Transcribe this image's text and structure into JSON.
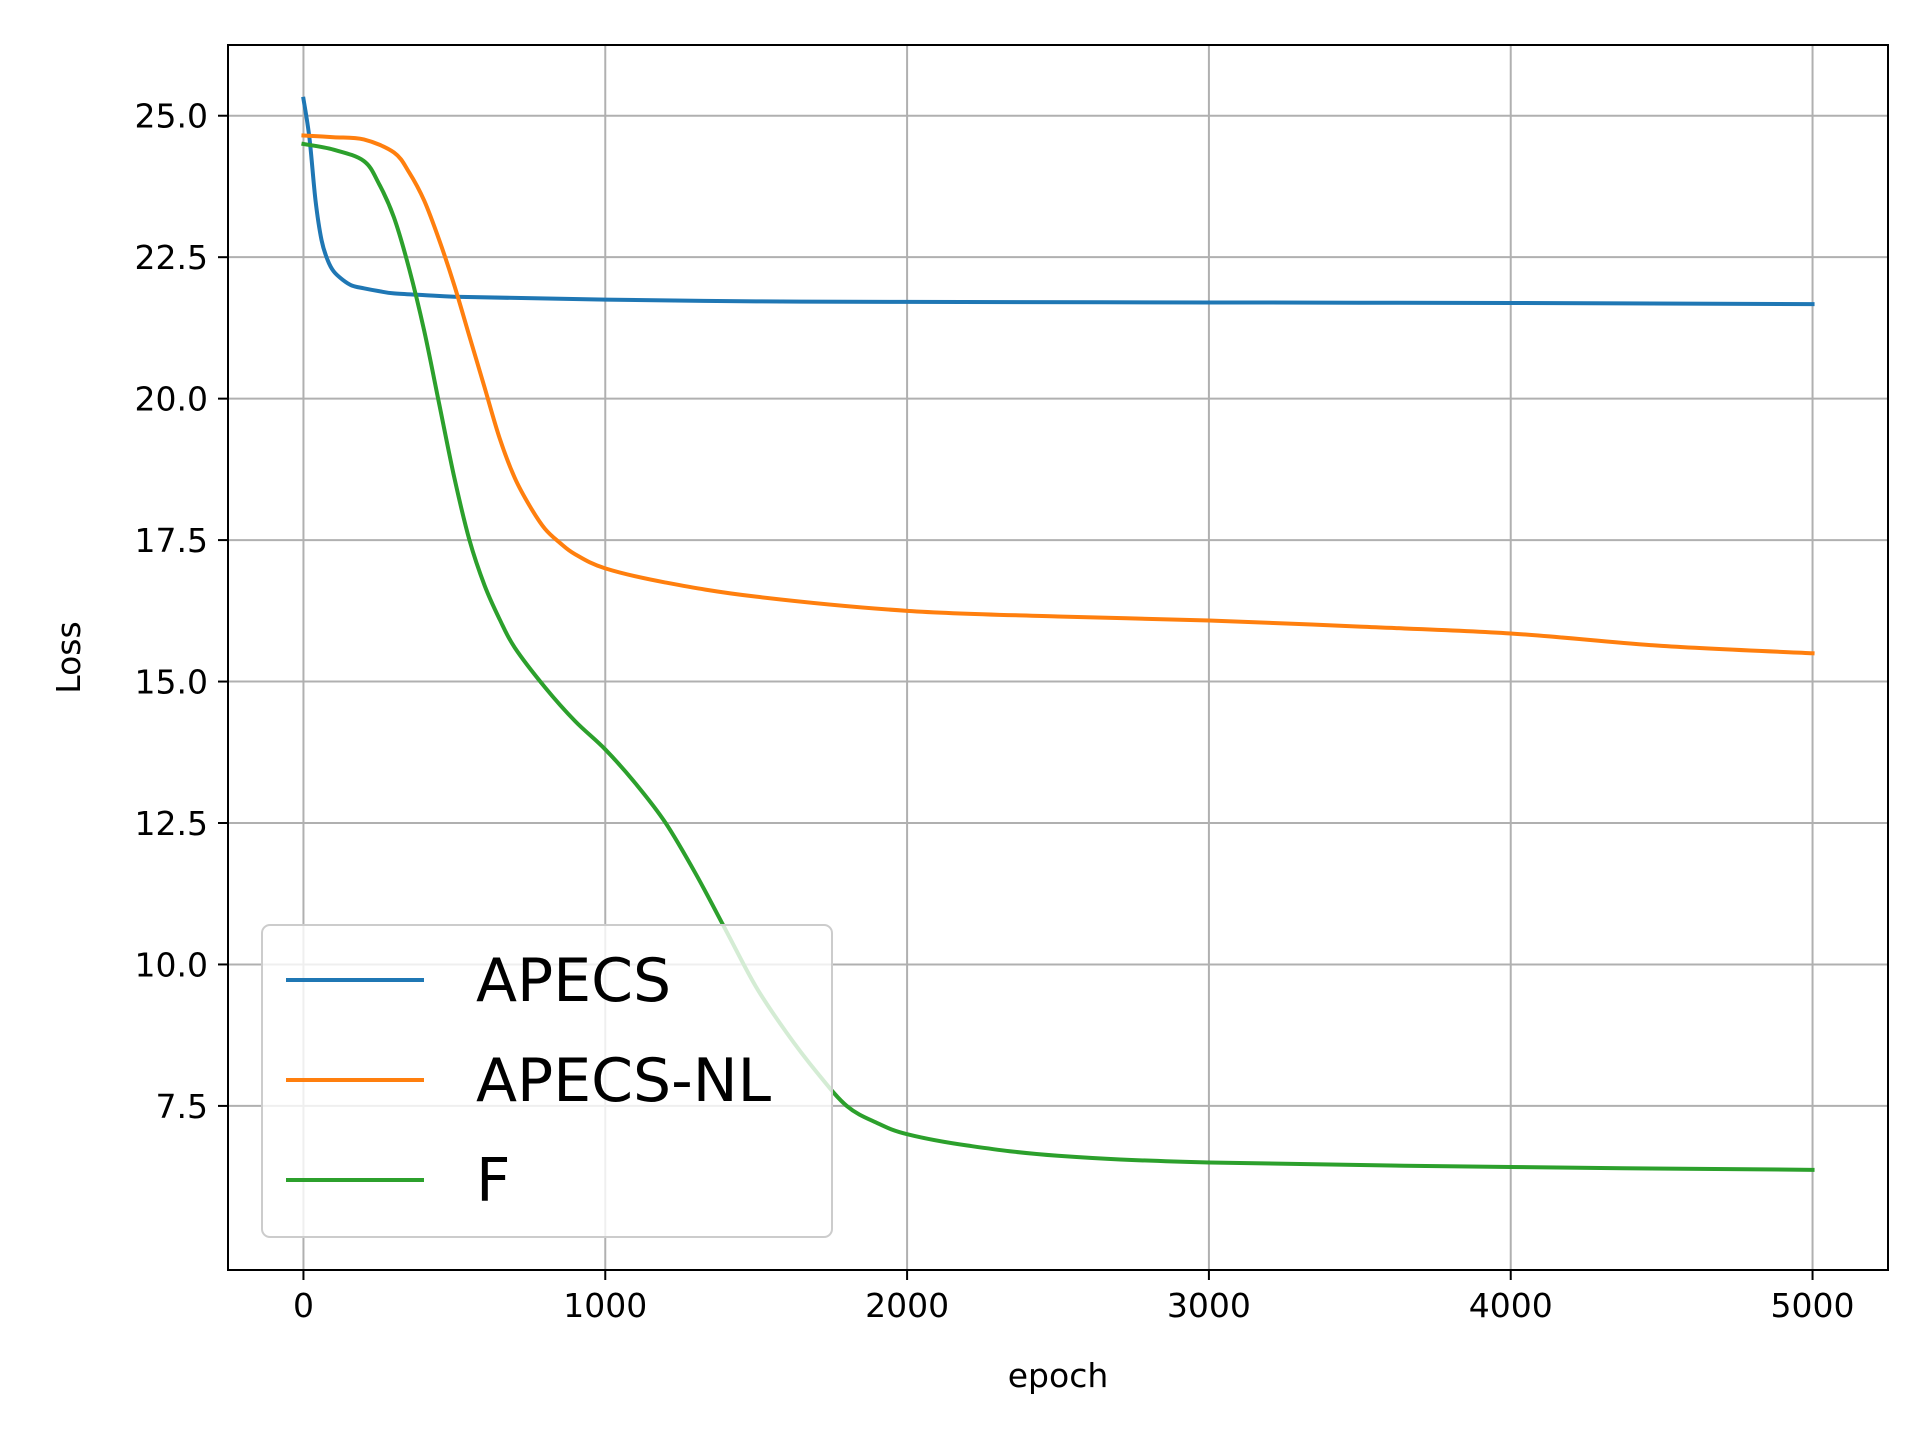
{
  "chart_data": {
    "type": "line",
    "title": "",
    "xlabel": "epoch",
    "ylabel": "Loss",
    "xlim": [
      -250,
      5250
    ],
    "ylim": [
      4.6,
      26.25
    ],
    "xticks": [
      0,
      1000,
      2000,
      3000,
      4000,
      5000
    ],
    "xtick_labels": [
      "0",
      "1000",
      "2000",
      "3000",
      "4000",
      "5000"
    ],
    "yticks": [
      7.5,
      10.0,
      12.5,
      15.0,
      17.5,
      20.0,
      22.5,
      25.0
    ],
    "ytick_labels": [
      "7.5",
      "10.0",
      "12.5",
      "15.0",
      "17.5",
      "20.0",
      "22.5",
      "25.0"
    ],
    "grid": true,
    "legend": {
      "position": "lower-left"
    },
    "series": [
      {
        "name": "APECS",
        "color": "#1f77b4",
        "x": [
          0,
          20,
          40,
          60,
          80,
          100,
          130,
          160,
          200,
          250,
          300,
          400,
          500,
          700,
          1000,
          1500,
          2000,
          3000,
          4000,
          5000
        ],
        "y": [
          25.3,
          24.6,
          23.5,
          22.8,
          22.45,
          22.25,
          22.1,
          22.0,
          21.95,
          21.9,
          21.86,
          21.83,
          21.8,
          21.78,
          21.75,
          21.72,
          21.71,
          21.7,
          21.69,
          21.67
        ]
      },
      {
        "name": "APECS-NL",
        "color": "#ff7f0e",
        "x": [
          0,
          100,
          200,
          300,
          350,
          400,
          450,
          500,
          550,
          600,
          650,
          700,
          750,
          800,
          850,
          900,
          1000,
          1200,
          1500,
          2000,
          2500,
          3000,
          3500,
          4000,
          4500,
          5000
        ],
        "y": [
          24.65,
          24.62,
          24.58,
          24.35,
          24.0,
          23.5,
          22.8,
          22.0,
          21.1,
          20.2,
          19.3,
          18.6,
          18.1,
          17.7,
          17.45,
          17.25,
          17.0,
          16.75,
          16.5,
          16.25,
          16.15,
          16.08,
          15.97,
          15.85,
          15.63,
          15.5
        ]
      },
      {
        "name": "F",
        "color": "#2ca02c",
        "x": [
          0,
          100,
          200,
          250,
          300,
          350,
          400,
          450,
          500,
          550,
          600,
          650,
          700,
          800,
          900,
          1000,
          1100,
          1200,
          1300,
          1400,
          1500,
          1600,
          1700,
          1800,
          1900,
          2000,
          2200,
          2500,
          3000,
          4000,
          5000
        ],
        "y": [
          24.5,
          24.4,
          24.2,
          23.8,
          23.2,
          22.3,
          21.2,
          19.9,
          18.6,
          17.5,
          16.7,
          16.1,
          15.6,
          14.9,
          14.3,
          13.8,
          13.2,
          12.5,
          11.6,
          10.6,
          9.6,
          8.8,
          8.1,
          7.5,
          7.2,
          7.0,
          6.8,
          6.62,
          6.5,
          6.42,
          6.37
        ]
      }
    ]
  }
}
